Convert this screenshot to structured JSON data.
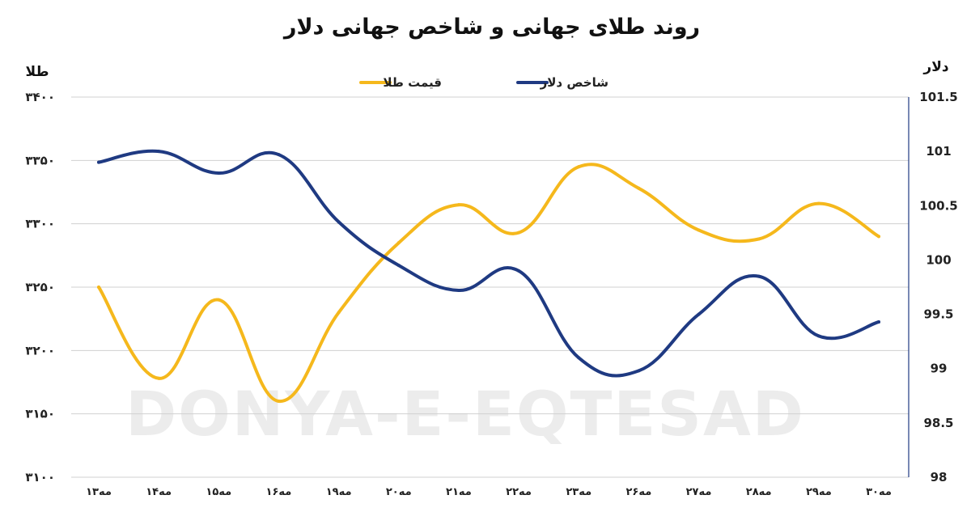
{
  "chart_data": {
    "type": "line",
    "title": "روند طلای جهانی و شاخص جهانی دلار",
    "watermark": "DONYA-E-EQTESAD",
    "categories": [
      "۱۳مه",
      "۱۴مه",
      "۱۵مه",
      "۱۶مه",
      "۱۹مه",
      "۲۰مه",
      "۲۱مه",
      "۲۲مه",
      "۲۳مه",
      "۲۶مه",
      "۲۷مه",
      "۲۸مه",
      "۲۹مه",
      "۳۰مه"
    ],
    "y_left": {
      "label": "طلا",
      "min": 3100,
      "max": 3400,
      "ticks": [
        3100,
        3150,
        3200,
        3250,
        3300,
        3350,
        3400
      ],
      "tick_labels": [
        "۳۱۰۰",
        "۳۱۵۰",
        "۳۲۰۰",
        "۳۲۵۰",
        "۳۳۰۰",
        "۳۳۵۰",
        "۳۴۰۰"
      ]
    },
    "y_right": {
      "label": "دلار",
      "min": 98,
      "max": 101.5,
      "ticks": [
        98,
        98.5,
        99,
        99.5,
        100,
        100.5,
        101,
        101.5
      ],
      "tick_labels": [
        "98",
        "98.5",
        "99",
        "99.5",
        "100",
        "100.5",
        "101",
        "101.5"
      ]
    },
    "legend_position": "top-center",
    "grid": true,
    "series": [
      {
        "name": "قیمت طلا",
        "axis": "left",
        "color": "#f5b81c",
        "values": [
          3250,
          3178,
          3240,
          3160,
          3230,
          3285,
          3315,
          3293,
          3345,
          3328,
          3295,
          3288,
          3316,
          3290
        ]
      },
      {
        "name": "شاخص دلار",
        "axis": "right",
        "color": "#1f3a82",
        "values": [
          100.9,
          101.0,
          100.8,
          100.97,
          100.35,
          99.95,
          99.72,
          99.9,
          99.1,
          98.98,
          99.5,
          99.85,
          99.3,
          99.43
        ]
      }
    ]
  }
}
